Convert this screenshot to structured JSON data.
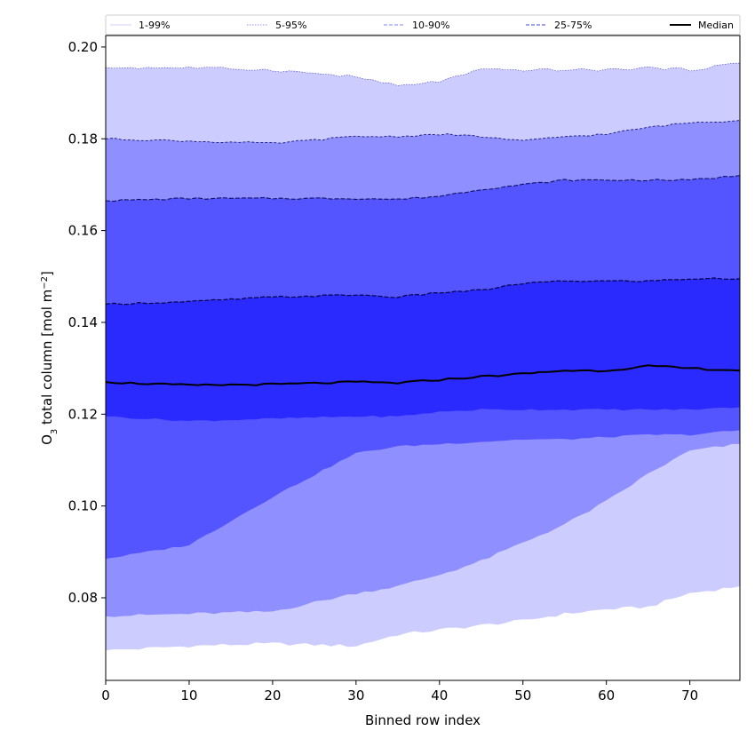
{
  "chart_data": {
    "type": "area",
    "xlabel": "Binned row index",
    "ylabel_prefix": "O",
    "ylabel_sub": "3",
    "ylabel_rest": " total column [mol m",
    "ylabel_sup": "−2",
    "ylabel_end": "]",
    "xlim": [
      0,
      76
    ],
    "ylim": [
      0.062,
      0.2025
    ],
    "xticks": [
      0,
      10,
      20,
      30,
      40,
      50,
      60,
      70
    ],
    "xtick_labels": [
      "0",
      "10",
      "20",
      "30",
      "40",
      "50",
      "60",
      "70"
    ],
    "yticks": [
      0.08,
      0.1,
      0.12,
      0.14,
      0.16,
      0.18,
      0.2
    ],
    "ytick_labels": [
      "0.08",
      "0.10",
      "0.12",
      "0.14",
      "0.16",
      "0.18",
      "0.20"
    ],
    "legend": {
      "placement": "top, above plot",
      "entries": [
        {
          "label": "1-99%",
          "color": "#d0d0ff",
          "dash": "solid"
        },
        {
          "label": "5-95%",
          "color": "#8f8fff",
          "dash": "dotted"
        },
        {
          "label": "10-90%",
          "color": "#8080f0",
          "dash": "dashed"
        },
        {
          "label": "25-75%",
          "color": "#4040e0",
          "dash": "dashed"
        },
        {
          "label": "Median",
          "color": "#000000",
          "dash": "solid"
        }
      ]
    },
    "band_colors": [
      "#ccccff",
      "#8f8fff",
      "#5555ff",
      "#2a2aff"
    ],
    "median_color": "#000000",
    "x": [
      0,
      10,
      20,
      30,
      35,
      40,
      45,
      50,
      55,
      60,
      65,
      70,
      76
    ],
    "series": [
      {
        "name": "p01",
        "values": [
          0.0685,
          0.0695,
          0.07,
          0.0695,
          0.072,
          0.073,
          0.074,
          0.075,
          0.0765,
          0.0775,
          0.078,
          0.081,
          0.0825
        ]
      },
      {
        "name": "p05",
        "values": [
          0.076,
          0.0765,
          0.077,
          0.081,
          0.0825,
          0.085,
          0.088,
          0.092,
          0.096,
          0.101,
          0.107,
          0.112,
          0.1135
        ]
      },
      {
        "name": "p10",
        "values": [
          0.0885,
          0.0915,
          0.102,
          0.1115,
          0.113,
          0.1135,
          0.114,
          0.1145,
          0.1145,
          0.115,
          0.1155,
          0.1155,
          0.1165
        ]
      },
      {
        "name": "p25",
        "values": [
          0.1195,
          0.1185,
          0.119,
          0.1195,
          0.1195,
          0.1205,
          0.121,
          0.121,
          0.121,
          0.121,
          0.121,
          0.121,
          0.1215
        ]
      },
      {
        "name": "median",
        "values": [
          0.127,
          0.1263,
          0.1265,
          0.127,
          0.1268,
          0.1275,
          0.1282,
          0.1288,
          0.1295,
          0.1295,
          0.1305,
          0.13,
          0.1295
        ]
      },
      {
        "name": "p75",
        "values": [
          0.144,
          0.1445,
          0.1455,
          0.146,
          0.1455,
          0.1465,
          0.147,
          0.1485,
          0.149,
          0.149,
          0.149,
          0.1495,
          0.1495
        ]
      },
      {
        "name": "p90",
        "values": [
          0.1665,
          0.167,
          0.167,
          0.167,
          0.1668,
          0.1675,
          0.169,
          0.17,
          0.171,
          0.171,
          0.171,
          0.171,
          0.172
        ]
      },
      {
        "name": "p95",
        "values": [
          0.18,
          0.1795,
          0.179,
          0.1805,
          0.1805,
          0.181,
          0.1805,
          0.1795,
          0.1805,
          0.181,
          0.1825,
          0.1835,
          0.184
        ]
      },
      {
        "name": "p99",
        "values": [
          0.1955,
          0.1955,
          0.195,
          0.1935,
          0.1915,
          0.1925,
          0.195,
          0.195,
          0.195,
          0.195,
          0.1955,
          0.195,
          0.1965
        ]
      }
    ]
  }
}
